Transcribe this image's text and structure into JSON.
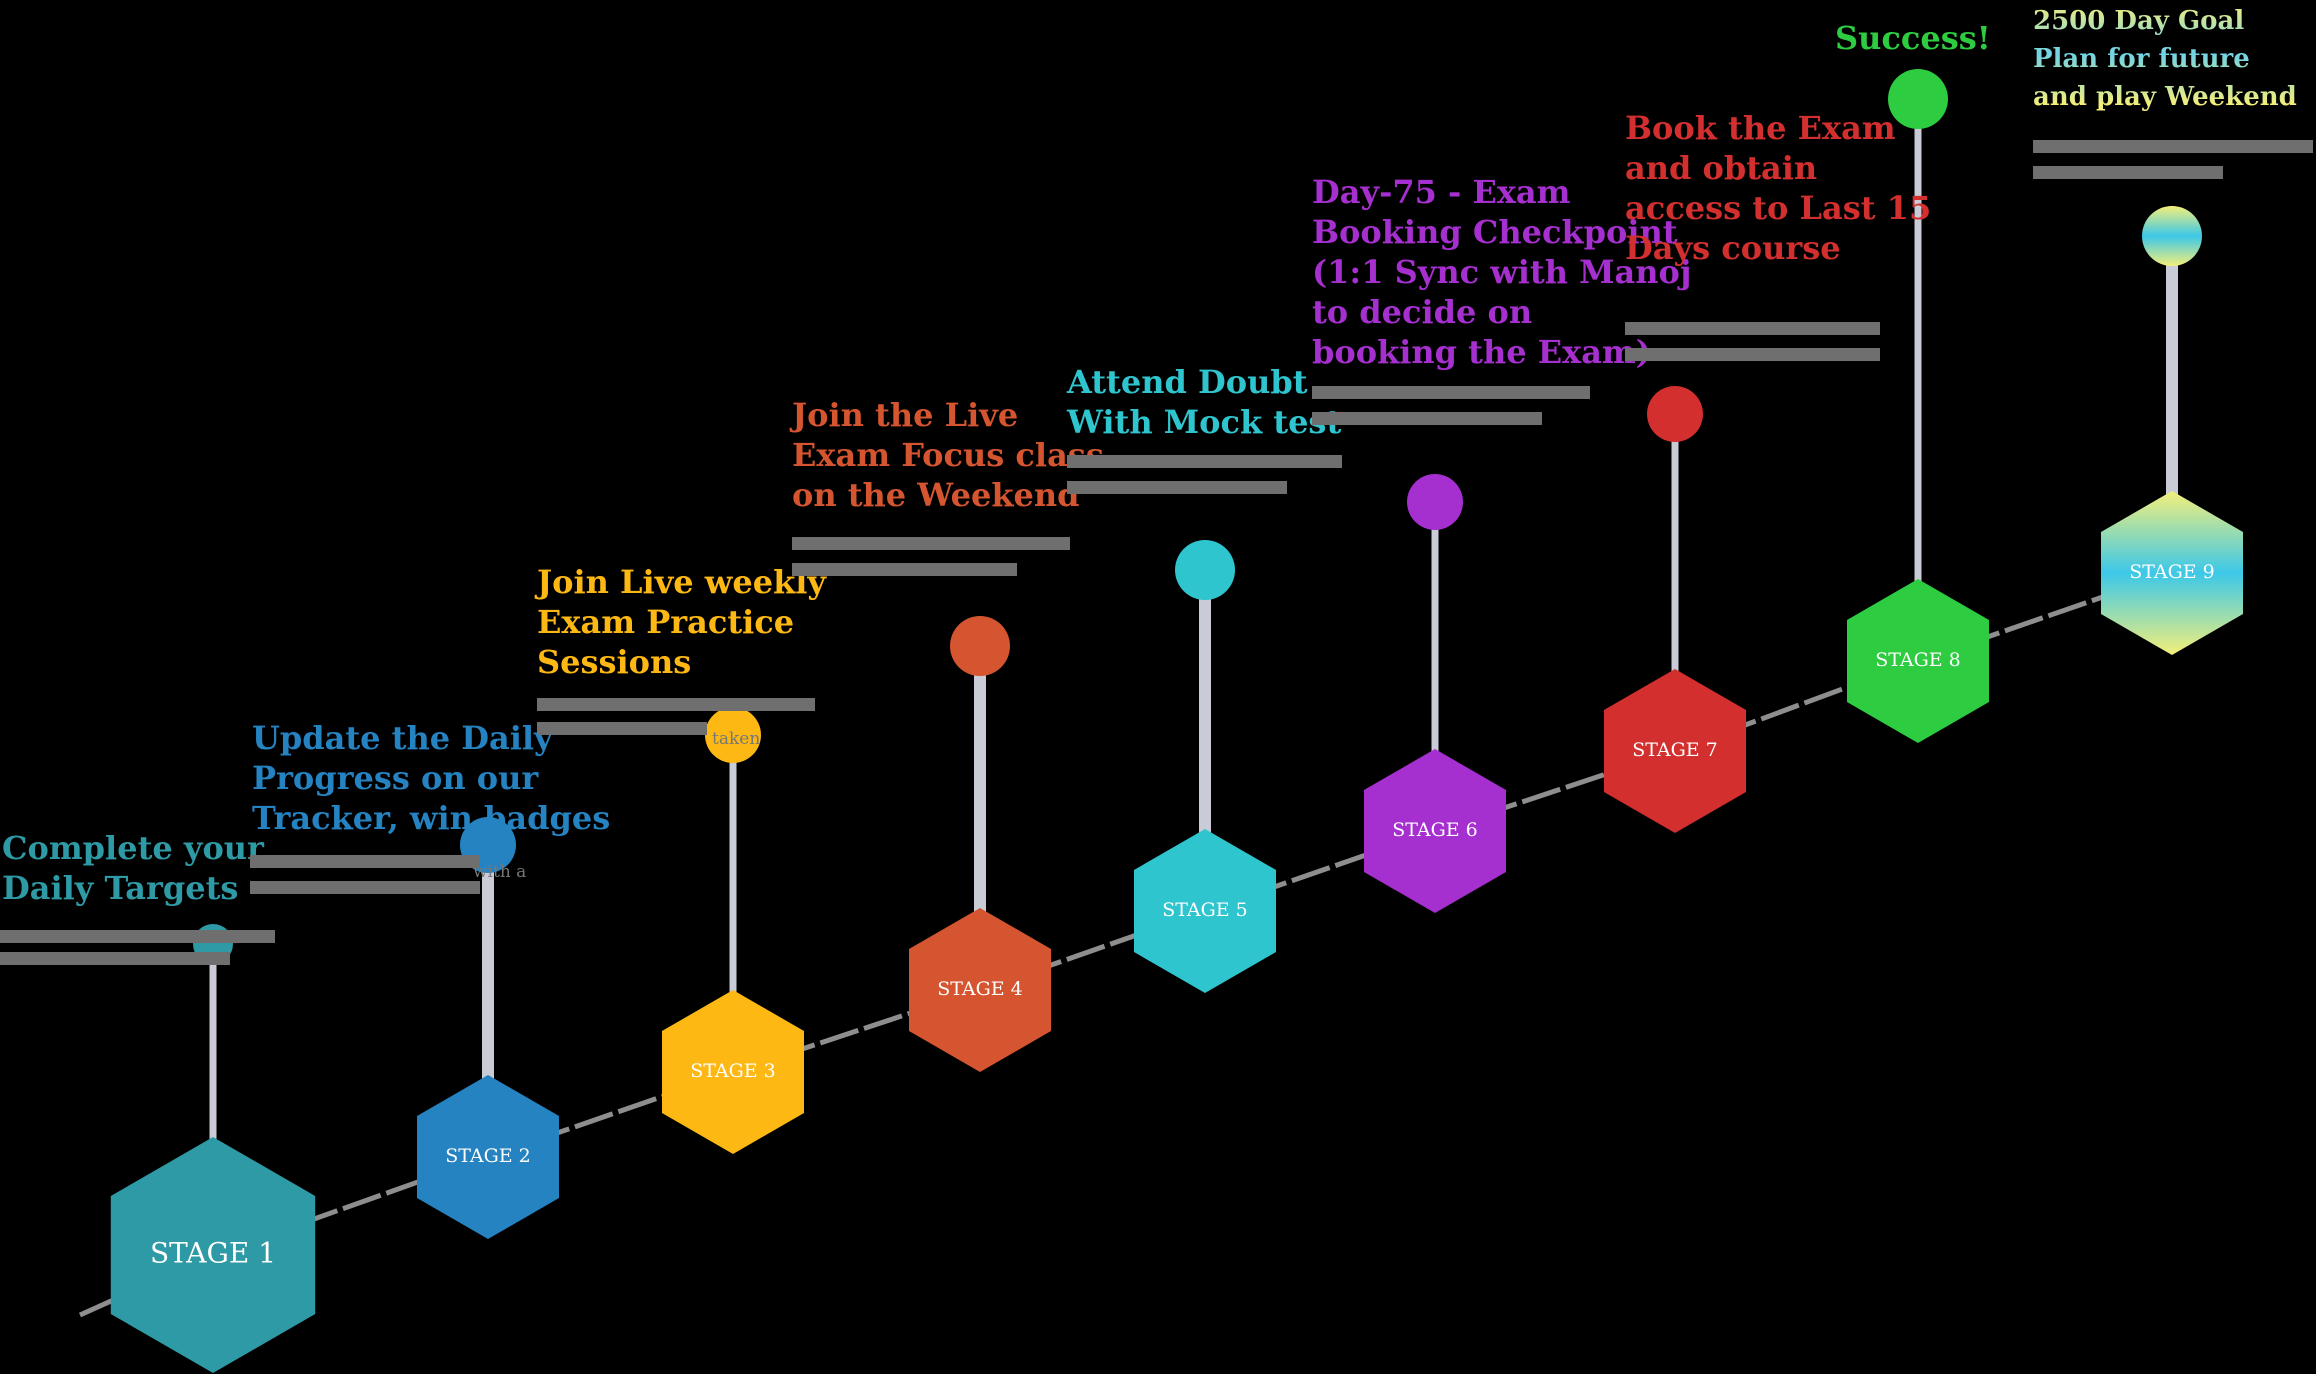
{
  "colors": {
    "background": "#000000",
    "connector": "#8e8e8e",
    "stem": "#c9ccd6"
  },
  "stages": [
    {
      "label": "STAGE 1",
      "color": "#2e9aa6",
      "heading": "Complete your\nDaily Targets",
      "heading_color": "#2e9aa6"
    },
    {
      "label": "STAGE 2",
      "color": "#2583c2",
      "heading": "Update the Daily\nProgress on our\nTracker, win badges",
      "heading_color": "#2583c2",
      "note": "with a"
    },
    {
      "label": "STAGE 3",
      "color": "#fdb813",
      "heading": "Join Live weekly\nExam Practice\nSessions",
      "heading_color": "#fdb813",
      "note": "taken"
    },
    {
      "label": "STAGE 4",
      "color": "#d4552f",
      "heading": "Join the Live\nExam Focus class\non the Weekend",
      "heading_color": "#d4552f"
    },
    {
      "label": "STAGE 5",
      "color": "#2fc5cf",
      "heading": "Attend Doubt\nWith Mock test",
      "heading_color": "#2fc5cf"
    },
    {
      "label": "STAGE 6",
      "color": "#a62fcf",
      "heading": "Day-75 - Exam\nBooking Checkpoint\n(1:1 Sync with Manoj\nto decide on\nbooking the Exam)",
      "heading_color": "#a62fcf"
    },
    {
      "label": "STAGE 7",
      "color": "#d32f2f",
      "heading": "Book the Exam\nand obtain\naccess to Last 15\nDays course",
      "heading_color": "#d32f2f"
    },
    {
      "label": "STAGE 8",
      "color": "#2ecc40",
      "heading": "Success!",
      "heading_color": "#2ecc40"
    },
    {
      "label": "STAGE 9",
      "color": "gradient",
      "heading": "2500 Day Goal\nPlan for future\nand play Weekend",
      "heading_color": "gradient"
    }
  ]
}
